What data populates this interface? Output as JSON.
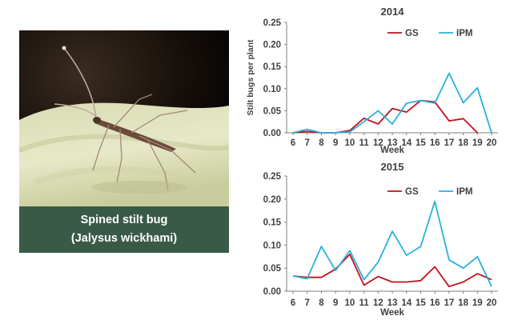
{
  "photo": {
    "caption_line1": "Spined stilt bug",
    "caption_line2": "(Jalysus wickhami)",
    "caption_bg": "#3a5a48"
  },
  "colors": {
    "GS": "#c0121e",
    "IPM": "#2ab0dc",
    "axis": "#7f7f7f",
    "text": "#404040"
  },
  "chart_data": [
    {
      "type": "line",
      "title": "2014",
      "xlabel": "Week",
      "ylabel": "Stilt bugs per plant",
      "x": [
        6,
        7,
        8,
        9,
        10,
        11,
        12,
        13,
        14,
        15,
        16,
        17,
        18,
        19,
        20
      ],
      "ylim": [
        0,
        0.25
      ],
      "yticks": [
        "0.00",
        "0.05",
        "0.10",
        "0.15",
        "0.20",
        "0.25"
      ],
      "legend": "top-right",
      "series": [
        {
          "name": "GS",
          "color": "#c0121e",
          "x": [
            6,
            7,
            8,
            9,
            10,
            11,
            12,
            13,
            14,
            15,
            16,
            17,
            18,
            19
          ],
          "values": [
            0.0,
            0.003,
            0.0,
            0.0,
            0.005,
            0.033,
            0.02,
            0.055,
            0.047,
            0.073,
            0.07,
            0.027,
            0.032,
            0.0
          ]
        },
        {
          "name": "IPM",
          "color": "#2ab0dc",
          "x": [
            6,
            7,
            8,
            9,
            10,
            11,
            12,
            13,
            14,
            15,
            16,
            17,
            18,
            19,
            20
          ],
          "values": [
            0.0,
            0.008,
            0.0,
            0.0,
            0.002,
            0.025,
            0.05,
            0.02,
            0.067,
            0.073,
            0.067,
            0.135,
            0.068,
            0.102,
            0.0
          ]
        }
      ]
    },
    {
      "type": "line",
      "title": "2015",
      "xlabel": "Week",
      "ylabel": "",
      "x": [
        6,
        7,
        8,
        9,
        10,
        11,
        12,
        13,
        14,
        15,
        16,
        17,
        18,
        19,
        20
      ],
      "ylim": [
        0,
        0.25
      ],
      "yticks": [
        "0.00",
        "0.05",
        "0.10",
        "0.15",
        "0.20",
        "0.25"
      ],
      "legend": "top-right",
      "series": [
        {
          "name": "GS",
          "color": "#c0121e",
          "x": [
            6,
            7,
            8,
            9,
            10,
            11,
            12,
            13,
            14,
            15,
            16,
            17,
            18,
            19,
            20
          ],
          "values": [
            0.033,
            0.03,
            0.03,
            0.048,
            0.08,
            0.013,
            0.032,
            0.02,
            0.02,
            0.023,
            0.053,
            0.01,
            0.02,
            0.038,
            0.025
          ]
        },
        {
          "name": "IPM",
          "color": "#2ab0dc",
          "x": [
            6,
            7,
            8,
            9,
            10,
            11,
            12,
            13,
            14,
            15,
            16,
            17,
            18,
            19,
            20
          ],
          "values": [
            0.033,
            0.027,
            0.097,
            0.045,
            0.088,
            0.025,
            0.063,
            0.13,
            0.078,
            0.097,
            0.195,
            0.068,
            0.05,
            0.075,
            0.01
          ]
        }
      ]
    }
  ]
}
